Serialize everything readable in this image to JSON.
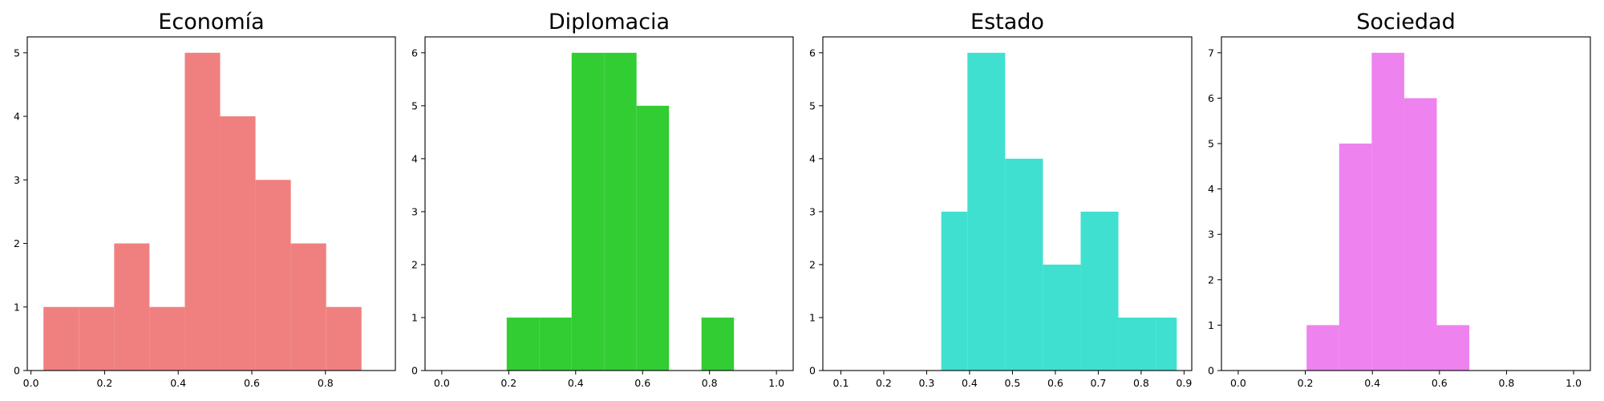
{
  "chart_data": [
    {
      "type": "bar",
      "title": "Economía",
      "color": "#f08080",
      "xlim": [
        -0.01,
        0.99
      ],
      "ylim": [
        0,
        5.25
      ],
      "xticks": [
        0.0,
        0.2,
        0.4,
        0.6,
        0.8
      ],
      "xtick_labels": [
        "0.0",
        "0.2",
        "0.4",
        "0.6",
        "0.8"
      ],
      "yticks": [
        0,
        1,
        2,
        3,
        4,
        5
      ],
      "ytick_labels": [
        "0",
        "1",
        "2",
        "3",
        "4",
        "5"
      ],
      "bin_edges": [
        0.034,
        0.13,
        0.226,
        0.322,
        0.418,
        0.514,
        0.61,
        0.706,
        0.802,
        0.898
      ],
      "counts": [
        1,
        1,
        2,
        1,
        5,
        4,
        3,
        2,
        1
      ]
    },
    {
      "type": "bar",
      "title": "Diplomacia",
      "color": "#32cd32",
      "xlim": [
        -0.05,
        1.05
      ],
      "ylim": [
        0,
        6.3
      ],
      "xticks": [
        0.0,
        0.2,
        0.4,
        0.6,
        0.8,
        1.0
      ],
      "xtick_labels": [
        "0.0",
        "0.2",
        "0.4",
        "0.6",
        "0.8",
        "1.0"
      ],
      "yticks": [
        0,
        1,
        2,
        3,
        4,
        5,
        6
      ],
      "ytick_labels": [
        "0",
        "1",
        "2",
        "3",
        "4",
        "5",
        "6"
      ],
      "bin_edges": [
        0.0,
        0.097,
        0.194,
        0.291,
        0.388,
        0.485,
        0.582,
        0.679,
        0.776,
        0.873
      ],
      "counts": [
        0,
        0,
        1,
        1,
        6,
        6,
        5,
        0,
        1
      ]
    },
    {
      "type": "bar",
      "title": "Estado",
      "color": "#40e0d0",
      "xlim": [
        0.058,
        0.918
      ],
      "ylim": [
        0,
        6.3
      ],
      "xticks": [
        0.1,
        0.2,
        0.3,
        0.4,
        0.5,
        0.6,
        0.7,
        0.8,
        0.9
      ],
      "xtick_labels": [
        "0.1",
        "0.2",
        "0.3",
        "0.4",
        "0.5",
        "0.6",
        "0.7",
        "0.8",
        "0.9"
      ],
      "yticks": [
        0,
        1,
        2,
        3,
        4,
        5,
        6
      ],
      "ytick_labels": [
        "0",
        "1",
        "2",
        "3",
        "4",
        "5",
        "6"
      ],
      "bin_edges": [
        0.334,
        0.395,
        0.483,
        0.571,
        0.659,
        0.747,
        0.835,
        0.883
      ],
      "counts": [
        3,
        6,
        4,
        2,
        3,
        1,
        1
      ]
    },
    {
      "type": "bar",
      "title": "Sociedad",
      "color": "#ee82ee",
      "xlim": [
        -0.05,
        1.05
      ],
      "ylim": [
        0,
        7.35
      ],
      "xticks": [
        0.0,
        0.2,
        0.4,
        0.6,
        0.8,
        1.0
      ],
      "xtick_labels": [
        "0.0",
        "0.2",
        "0.4",
        "0.6",
        "0.8",
        "1.0"
      ],
      "yticks": [
        0,
        1,
        2,
        3,
        4,
        5,
        6,
        7
      ],
      "ytick_labels": [
        "0",
        "1",
        "2",
        "3",
        "4",
        "5",
        "6",
        "7"
      ],
      "bin_edges": [
        0.0,
        0.097,
        0.204,
        0.301,
        0.398,
        0.495,
        0.592,
        0.689
      ],
      "counts": [
        0,
        0,
        1,
        5,
        7,
        6,
        1
      ]
    }
  ]
}
